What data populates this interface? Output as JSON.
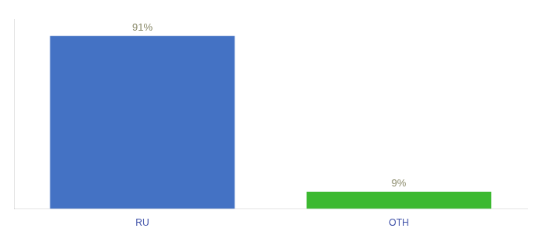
{
  "chart_data": {
    "type": "bar",
    "categories": [
      "RU",
      "OTH"
    ],
    "values": [
      91,
      9
    ],
    "value_labels": [
      "91%",
      "9%"
    ],
    "colors": [
      "#4472C4",
      "#3CB930"
    ],
    "ylim": [
      0,
      100
    ],
    "data_labels": true,
    "tick_labels": "x",
    "grid": false
  }
}
